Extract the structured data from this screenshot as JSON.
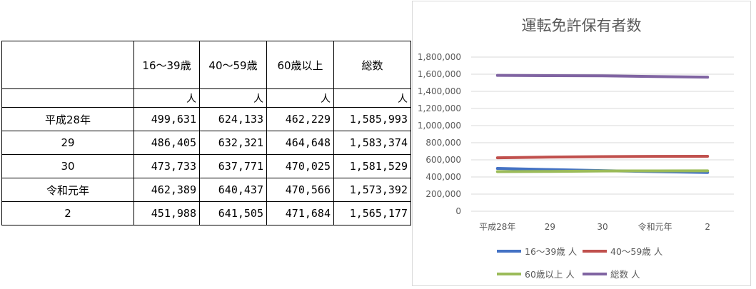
{
  "table": {
    "headers": [
      "",
      "16～39歳",
      "40～59歳",
      "60歳以上",
      "総数"
    ],
    "units": [
      "",
      "人",
      "人",
      "人",
      "人"
    ],
    "rows": [
      {
        "label": "平成28年",
        "values": [
          "499,631",
          "624,133",
          "462,229",
          "1,585,993"
        ]
      },
      {
        "label": "29",
        "values": [
          "486,405",
          "632,321",
          "464,648",
          "1,583,374"
        ]
      },
      {
        "label": "30",
        "values": [
          "473,733",
          "637,771",
          "470,025",
          "1,581,529"
        ]
      },
      {
        "label": "令和元年",
        "values": [
          "462,389",
          "640,437",
          "470,566",
          "1,573,392"
        ]
      },
      {
        "label": "2",
        "values": [
          "451,988",
          "641,505",
          "471,684",
          "1,565,177"
        ]
      }
    ]
  },
  "chart_data": {
    "type": "line",
    "title": "運転免許保有者数",
    "categories": [
      "平成28年",
      "29",
      "30",
      "令和元年",
      "2"
    ],
    "ylim": [
      0,
      1800000
    ],
    "yticks": [
      "0",
      "200,000",
      "400,000",
      "600,000",
      "800,000",
      "1,000,000",
      "1,200,000",
      "1,400,000",
      "1,600,000",
      "1,800,000"
    ],
    "grid": true,
    "legend_position": "bottom",
    "series": [
      {
        "name": "16～39歳 人",
        "color": "#4472c4",
        "values": [
          499631,
          486405,
          473733,
          462389,
          451988
        ]
      },
      {
        "name": "40～59歳 人",
        "color": "#c0504d",
        "values": [
          624133,
          632321,
          637771,
          640437,
          641505
        ]
      },
      {
        "name": "60歳以上 人",
        "color": "#9bbb59",
        "values": [
          462229,
          464648,
          470025,
          470566,
          471684
        ]
      },
      {
        "name": "総数 人",
        "color": "#8064a2",
        "values": [
          1585993,
          1583374,
          1581529,
          1573392,
          1565177
        ]
      }
    ]
  }
}
